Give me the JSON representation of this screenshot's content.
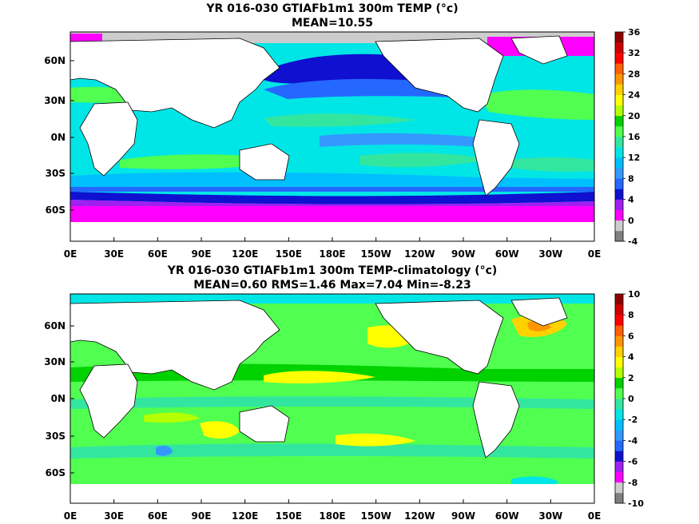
{
  "panels": [
    {
      "title_line1": "YR 016-030 GTIAFb1m1 300m TEMP (°c)",
      "title_line2": "MEAN=10.55",
      "lat_labels": [
        "60N",
        "30N",
        "0N",
        "30S",
        "60S"
      ],
      "lon_labels": [
        "0E",
        "30E",
        "60E",
        "90E",
        "120E",
        "150E",
        "180E",
        "150W",
        "120W",
        "90W",
        "60W",
        "30W",
        "0E"
      ],
      "colorbar_labels": [
        "36",
        "32",
        "28",
        "24",
        "20",
        "16",
        "12",
        "8",
        "4",
        "0",
        "-4"
      ],
      "colorbar_colors": [
        "#7f7f7f",
        "#cccccc",
        "#ff00ff",
        "#a020f0",
        "#1010d0",
        "#2468ff",
        "#3399ff",
        "#00bfff",
        "#00e6e6",
        "#33e6a0",
        "#50ff50",
        "#00d200",
        "#b4ff00",
        "#ffff00",
        "#ffd200",
        "#ff9600",
        "#ff6000",
        "#ff0000",
        "#d00000",
        "#900000"
      ]
    },
    {
      "title_line1": "YR 016-030 GTIAFb1m1 300m TEMP-climatology (°c)",
      "title_line2": "MEAN=0.60   RMS=1.46   Max=7.04   Min=-8.23",
      "lat_labels": [
        "60N",
        "30N",
        "0N",
        "30S",
        "60S"
      ],
      "lon_labels": [
        "0E",
        "30E",
        "60E",
        "90E",
        "120E",
        "150E",
        "180E",
        "150W",
        "120W",
        "90W",
        "60W",
        "30W",
        "0E"
      ],
      "colorbar_labels": [
        "10",
        "8",
        "6",
        "4",
        "2",
        "0",
        "-2",
        "-4",
        "-6",
        "-8",
        "-10"
      ],
      "colorbar_colors": [
        "#7f7f7f",
        "#cccccc",
        "#ff00ff",
        "#a020f0",
        "#1010d0",
        "#2468ff",
        "#3399ff",
        "#00bfff",
        "#00e6e6",
        "#33e6a0",
        "#50ff50",
        "#00d200",
        "#b4ff00",
        "#ffff00",
        "#ffd200",
        "#ff9600",
        "#ff6000",
        "#ff0000",
        "#d00000",
        "#900000"
      ]
    }
  ]
}
